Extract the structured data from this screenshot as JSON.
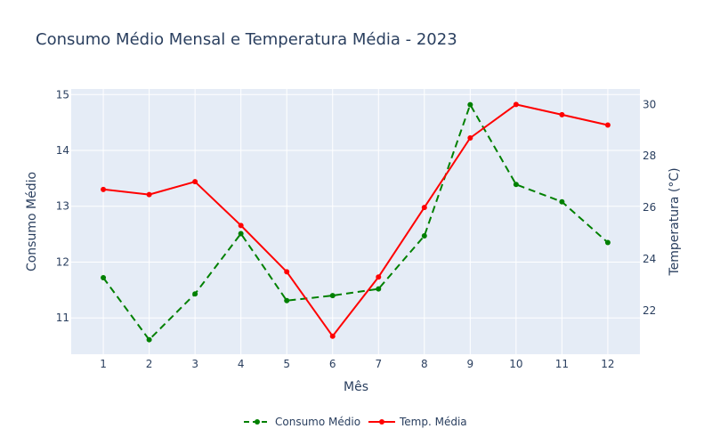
{
  "colors": {
    "plot_bg": "#e5ecf6",
    "grid": "#ffffff",
    "text": "#2a3f5f",
    "consumo": "#008000",
    "temp": "#ff0000"
  },
  "chart_data": {
    "type": "line",
    "title": "Consumo Médio Mensal e Temperatura Média - 2023",
    "xlabel": "Mês",
    "ylabel": "Consumo Médio",
    "y2label": "Temperatura (°C)",
    "x": [
      1,
      2,
      3,
      4,
      5,
      6,
      7,
      8,
      9,
      10,
      11,
      12
    ],
    "xlim": [
      0.3,
      12.7
    ],
    "ylim": [
      10.35,
      15.1
    ],
    "y2lim": [
      20.3,
      30.6
    ],
    "yticks": [
      11,
      12,
      13,
      14,
      15
    ],
    "y2ticks": [
      22,
      24,
      26,
      28,
      30
    ],
    "grid": true,
    "legend_position": "bottom-center",
    "series": [
      {
        "name": "Consumo Médio",
        "axis": "y",
        "style": "dashed",
        "color": "#008000",
        "values": [
          11.72,
          10.61,
          11.43,
          12.51,
          11.31,
          11.4,
          11.52,
          12.47,
          14.82,
          13.39,
          13.08,
          12.35
        ]
      },
      {
        "name": "Temp. Média",
        "axis": "y2",
        "style": "solid",
        "color": "#ff0000",
        "values": [
          26.7,
          26.5,
          27.0,
          25.3,
          23.5,
          21.0,
          23.3,
          26.0,
          28.7,
          30.0,
          29.6,
          29.2
        ]
      }
    ]
  }
}
